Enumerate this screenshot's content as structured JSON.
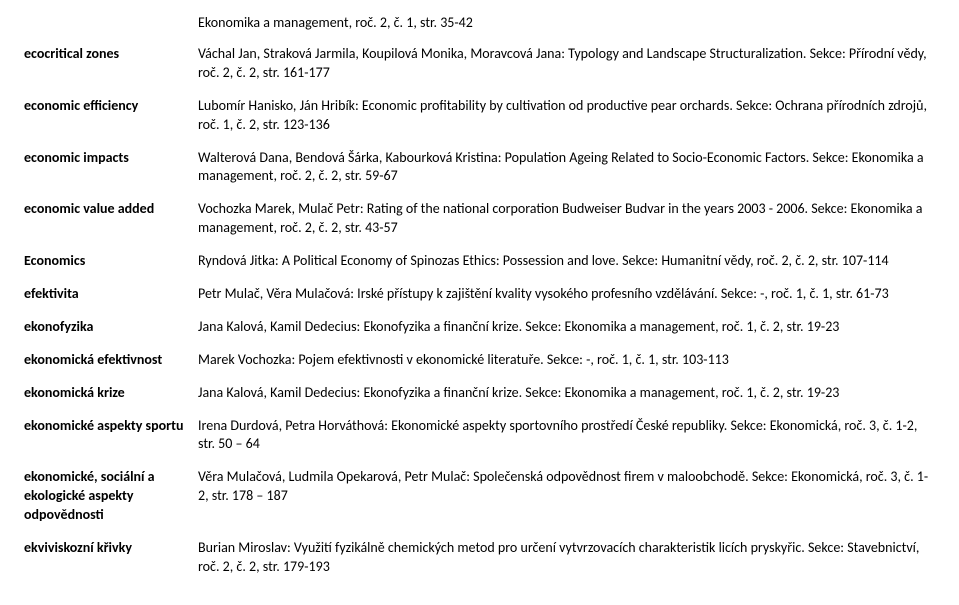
{
  "top": "Ekonomika a management, roč. 2, č. 1, str. 35-42",
  "entries": [
    {
      "term": "ecocritical zones",
      "def": "Váchal Jan, Straková Jarmila, Koupilová Monika, Moravcová Jana: Typology and Landscape Structuralization. Sekce: Přírodní vědy, roč. 2, č. 2, str. 161-177"
    },
    {
      "term": "economic efficiency",
      "def": "Lubomír Hanisko, Ján Hribík: Economic profitability by cultivation od productive pear orchards. Sekce: Ochrana přírodních zdrojů, roč. 1, č. 2, str. 123-136"
    },
    {
      "term": "economic impacts",
      "def": "Walterová Dana, Bendová Šárka, Kabourková Kristina: Population Ageing Related to Socio-Economic Factors. Sekce: Ekonomika a management, roč. 2, č. 2, str. 59-67"
    },
    {
      "term": "economic value added",
      "def": "Vochozka Marek, Mulač Petr: Rating of the national corporation Budweiser Budvar in the years 2003 - 2006. Sekce: Ekonomika a management, roč. 2, č. 2, str. 43-57"
    },
    {
      "term": "Economics",
      "def": "Ryndová Jitka: A Political Economy of Spinozas Ethics: Possession and love. Sekce: Humanitní vědy, roč. 2, č. 2, str. 107-114"
    },
    {
      "term": "efektivita",
      "def": "Petr Mulač, Věra Mulačová: Irské přístupy k zajištění kvality vysokého profesního vzdělávání. Sekce: -, roč. 1, č. 1, str. 61-73"
    },
    {
      "term": "ekonofyzika",
      "def": "Jana Kalová, Kamil Dedecius: Ekonofyzika a finanční krize. Sekce: Ekonomika a management, roč. 1, č. 2, str. 19-23"
    },
    {
      "term": "ekonomická efektivnost",
      "def": "Marek Vochozka: Pojem efektivnosti v ekonomické literatuře. Sekce: -, roč. 1, č. 1, str. 103-113"
    },
    {
      "term": "ekonomická krize",
      "def": "Jana Kalová, Kamil Dedecius: Ekonofyzika a finanční krize. Sekce: Ekonomika a management, roč. 1, č. 2, str. 19-23"
    },
    {
      "term": "ekonomické aspekty sportu",
      "def": "Irena Durdová, Petra Horváthová: Ekonomické aspekty sportovního prostředí České republiky. Sekce: Ekonomická, roč. 3, č. 1-2, str. 50 – 64"
    },
    {
      "term": "ekonomické, sociální a ekologické aspekty odpovědnosti",
      "def": "Věra Mulačová, Ludmila Opekarová, Petr Mulač: Společenská odpovědnost firem v maloobchodě. Sekce: Ekonomická, roč. 3, č. 1-2, str. 178 – 187"
    },
    {
      "term": "ekviviskozní křivky",
      "def": "Burian Miroslav: Využití fyzikálně chemických metod pro určení vytvrzovacích charakteristik licích pryskyřic. Sekce: Stavebnictví, roč. 2, č. 2, str. 179-193"
    }
  ]
}
